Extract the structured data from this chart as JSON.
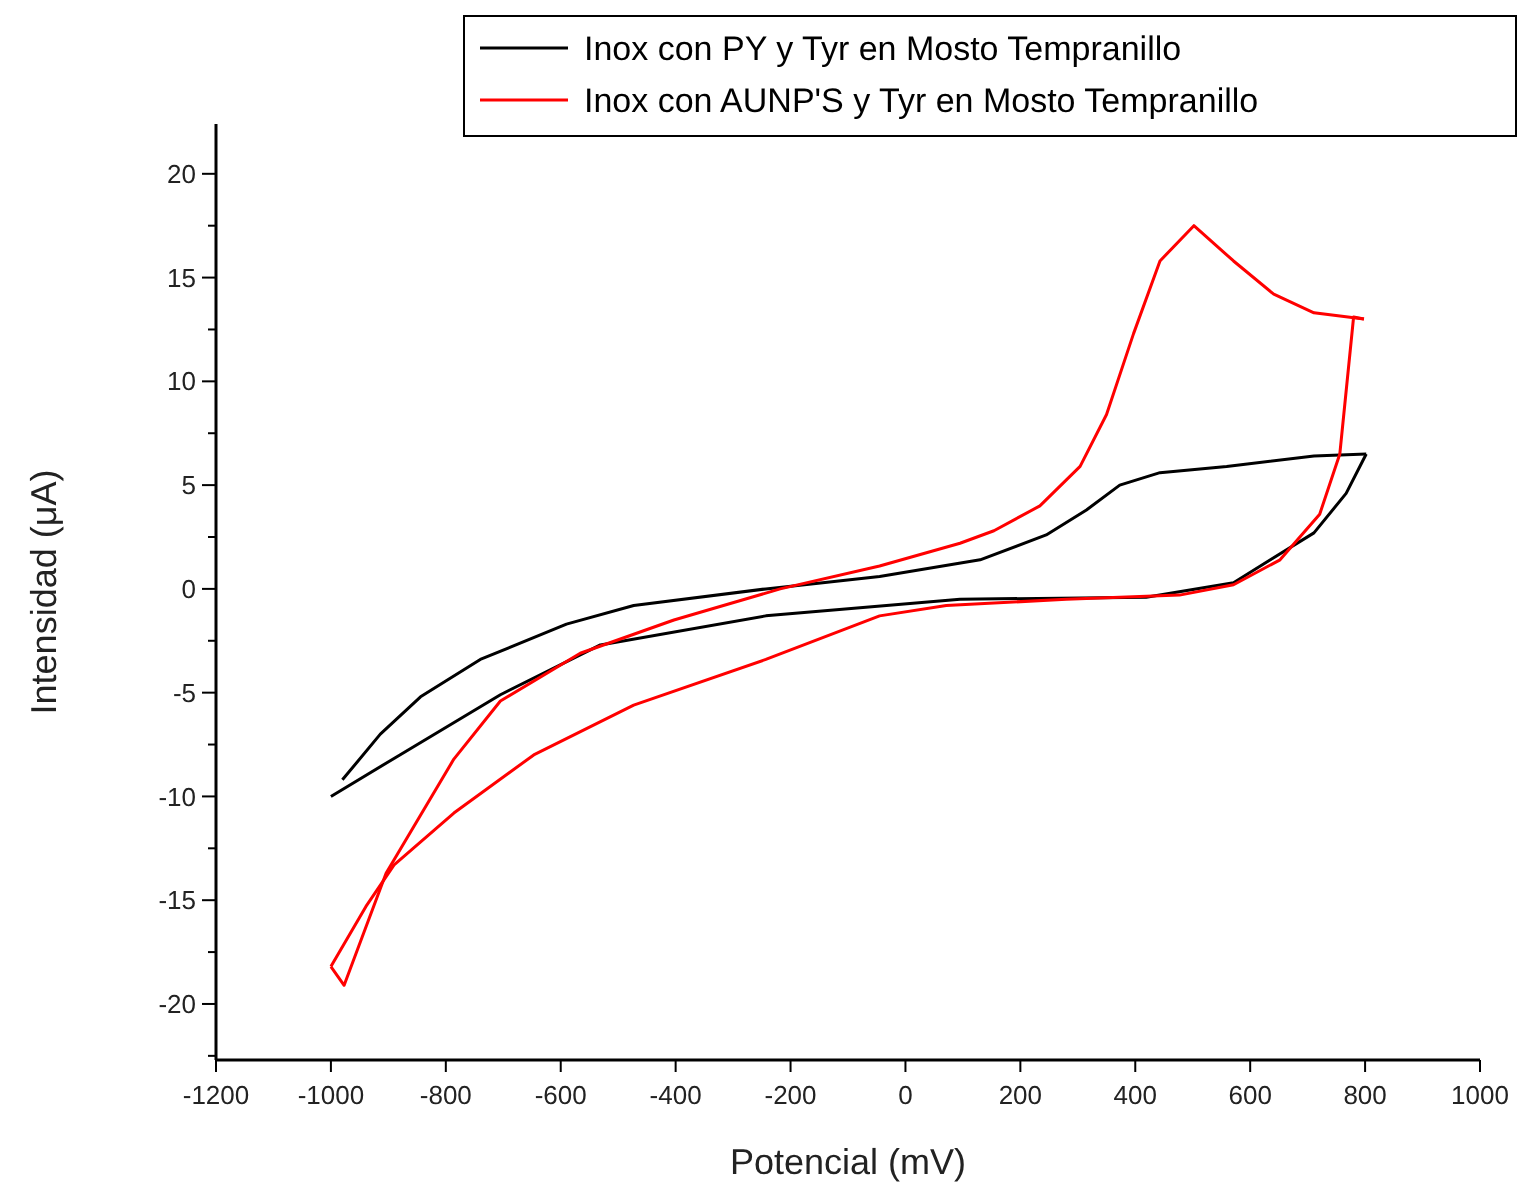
{
  "chart_data": {
    "type": "line",
    "xlabel": "Potencial (mV)",
    "ylabel": "Intensidad (μA)",
    "xlim": [
      -1200,
      1000
    ],
    "xticks": [
      -1200,
      -1000,
      -800,
      -600,
      -400,
      -200,
      0,
      200,
      400,
      600,
      800,
      1000
    ],
    "ylim": [
      -22.7,
      22.4
    ],
    "yticks": [
      {
        "value": -22.5,
        "label": null
      },
      -20,
      {
        "value": -17.5,
        "label": null
      },
      -15,
      {
        "value": -12.5,
        "label": null
      },
      -10,
      {
        "value": -7.5,
        "label": null
      },
      -5,
      {
        "value": -2.5,
        "label": null
      },
      0,
      {
        "value": 2.5,
        "label": null
      },
      5,
      {
        "value": 7.5,
        "label": null
      },
      10,
      {
        "value": 12.5,
        "label": null
      },
      15,
      {
        "value": 17.5,
        "label": null
      },
      20
    ],
    "grid": false,
    "legend": "top right",
    "marker": "none",
    "line_style": "solid",
    "series": [
      {
        "name": "Inox con PY y Tyr en Mosto Tempranillo",
        "color": "#000000",
        "x": [
          -1000,
          -880,
          -705,
          -531,
          -243,
          95,
          419,
          571,
          711,
          767,
          802
        ],
        "values": [
          -10,
          -8.0,
          -5.1,
          -2.7,
          -1.3,
          -0.5,
          -0.4,
          0.3,
          2.7,
          4.6,
          6.5
        ]
      },
      {
        "color": "#000000",
        "x": [
          802,
          711,
          559,
          443,
          373,
          315,
          245,
          130,
          -45,
          -243,
          -473,
          -590,
          -740,
          -844,
          -914,
          -980
        ],
        "values": [
          6.5,
          6.4,
          5.9,
          5.6,
          5.0,
          3.8,
          2.6,
          1.4,
          0.6,
          0,
          -0.8,
          -1.7,
          -3.4,
          -5.2,
          -7.0,
          -9.2
        ]
      },
      {
        "name": "Inox con AUNP'S y Tyr en Mosto Tempranillo",
        "color": "#ff0000",
        "x": [
          -1000,
          -977,
          -904,
          -786,
          -705,
          -566,
          -403,
          -218,
          -45,
          95,
          154,
          234,
          304,
          350,
          397,
          443,
          502,
          571,
          641,
          711,
          798
        ],
        "values": [
          -18.2,
          -19.1,
          -13.7,
          -8.2,
          -5.4,
          -3.1,
          -1.5,
          0,
          1.1,
          2.2,
          2.8,
          4.0,
          5.9,
          8.4,
          12.3,
          15.8,
          17.5,
          15.8,
          14.2,
          13.3,
          13.0
        ]
      },
      {
        "color": "#ff0000",
        "x": [
          798,
          780,
          756,
          721,
          652,
          571,
          477,
          280,
          71,
          -45,
          -243,
          -473,
          -647,
          -786,
          -890,
          -939,
          -1000
        ],
        "values": [
          13.0,
          13.1,
          6.5,
          3.6,
          1.4,
          0.2,
          -0.3,
          -0.5,
          -0.8,
          -1.3,
          -3.4,
          -5.6,
          -8.0,
          -10.8,
          -13.3,
          -15.3,
          -18.2
        ]
      }
    ]
  }
}
